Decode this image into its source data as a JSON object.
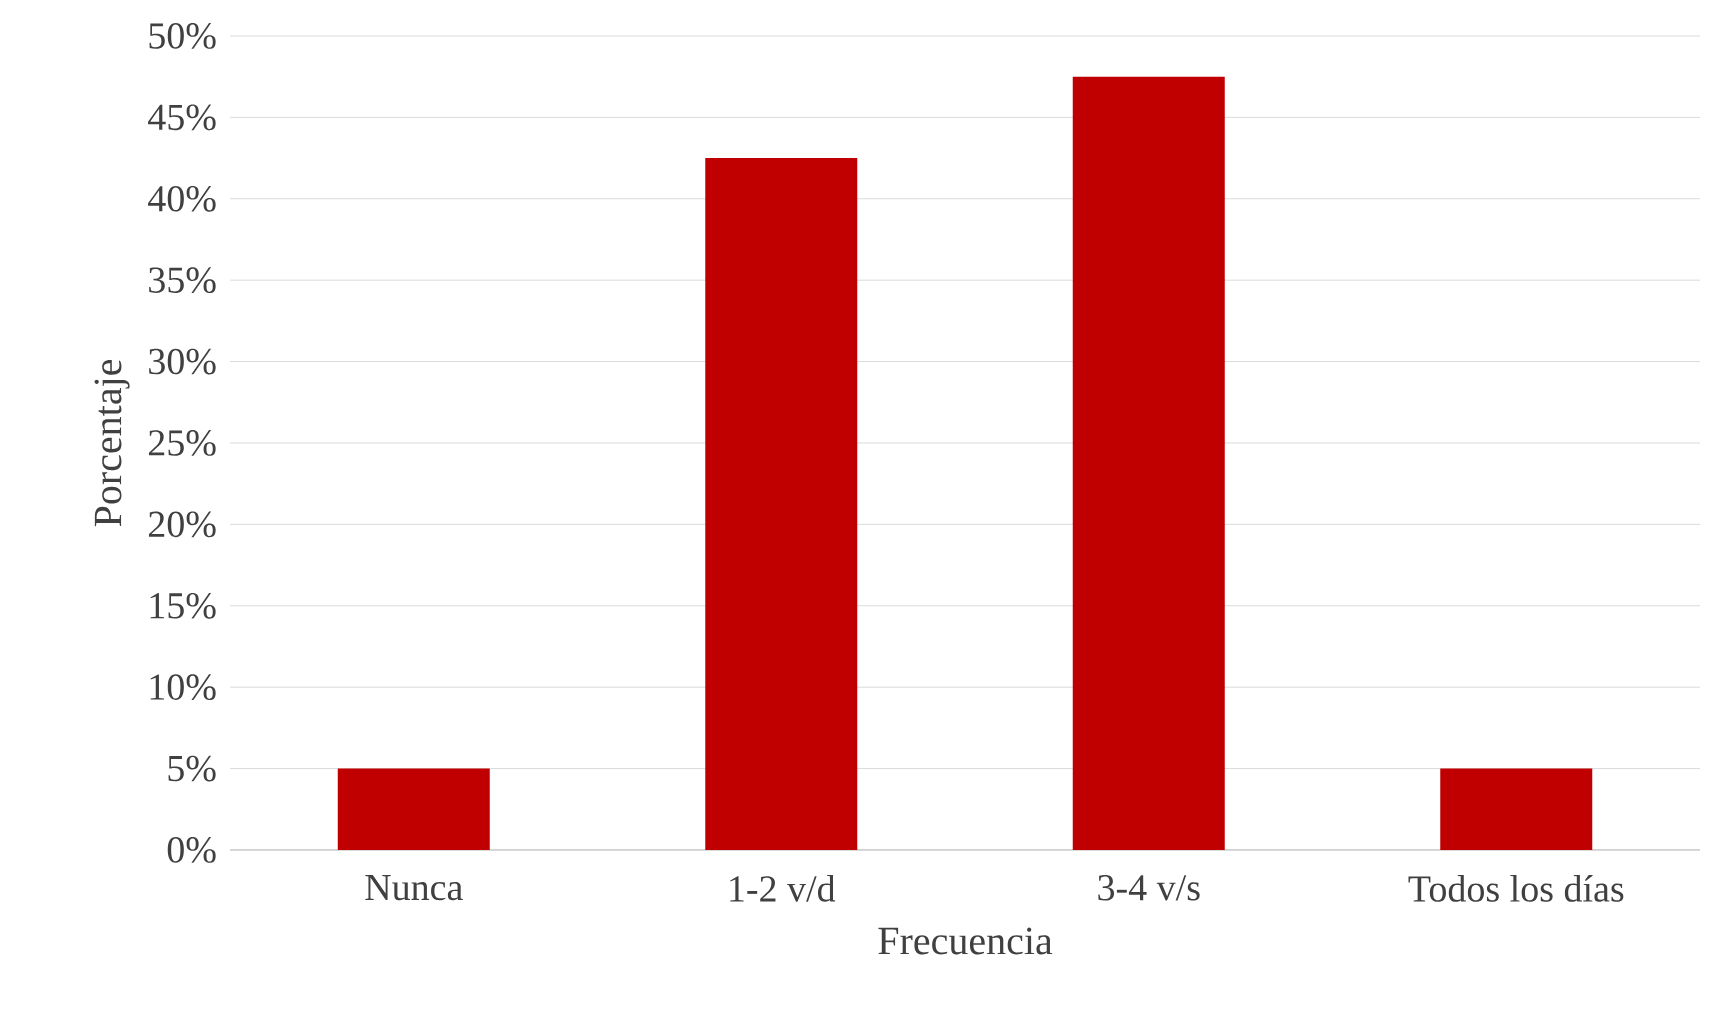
{
  "chart_data": {
    "type": "bar",
    "xlabel": "Frecuencia",
    "ylabel": "Porcentaje",
    "categories": [
      "Nunca",
      "1-2 v/d",
      "3-4 v/s",
      "Todos los días"
    ],
    "values": [
      5,
      42.5,
      47.5,
      5
    ],
    "color": "#c00000",
    "ylim": [
      0,
      50
    ],
    "yticks": [
      {
        "value": 0,
        "label": "0%"
      },
      {
        "value": 5,
        "label": "5%"
      },
      {
        "value": 10,
        "label": "10%"
      },
      {
        "value": 15,
        "label": "15%"
      },
      {
        "value": 20,
        "label": "20%"
      },
      {
        "value": 25,
        "label": "25%"
      },
      {
        "value": 30,
        "label": "30%"
      },
      {
        "value": 35,
        "label": "35%"
      },
      {
        "value": 40,
        "label": "40%"
      },
      {
        "value": 45,
        "label": "45%"
      },
      {
        "value": 50,
        "label": "50%"
      }
    ],
    "grid": "y"
  }
}
